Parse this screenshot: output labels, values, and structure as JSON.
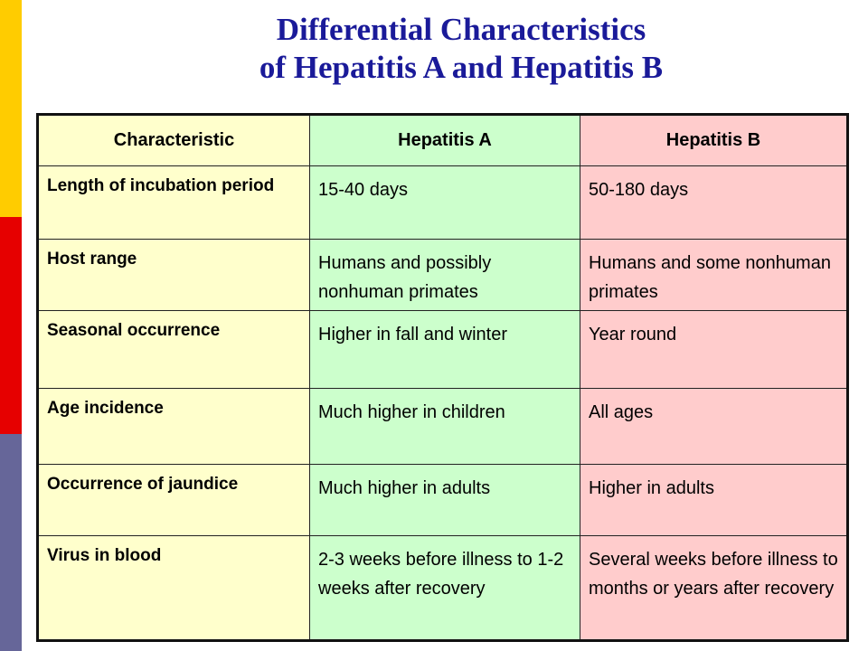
{
  "colors": {
    "title": "#1a1a99",
    "side_bar": [
      "#ffcc00",
      "#e60000",
      "#666699"
    ],
    "column_backgrounds": {
      "characteristic": "#ffffcc",
      "hepatitis_a": "#ccffcc",
      "hepatitis_b": "#ffcccc"
    }
  },
  "title": {
    "line1": "Differential Characteristics",
    "line2": "of Hepatitis A and Hepatitis B"
  },
  "table": {
    "headers": [
      "Characteristic",
      "Hepatitis A",
      "Hepatitis B"
    ],
    "rows": [
      [
        "Length of incubation period",
        "15-40 days",
        "50-180 days"
      ],
      [
        "Host range",
        "Humans and possibly nonhuman primates",
        "Humans and some nonhuman primates"
      ],
      [
        "Seasonal occurrence",
        "Higher in fall and winter",
        "Year round"
      ],
      [
        "Age incidence",
        "Much higher in children",
        "All ages"
      ],
      [
        "Occurrence of jaundice",
        "Much higher in adults",
        "Higher in adults"
      ],
      [
        "Virus in blood",
        "2-3 weeks before illness to 1-2 weeks after recovery",
        "Several weeks before illness to months or years after recovery"
      ]
    ]
  }
}
